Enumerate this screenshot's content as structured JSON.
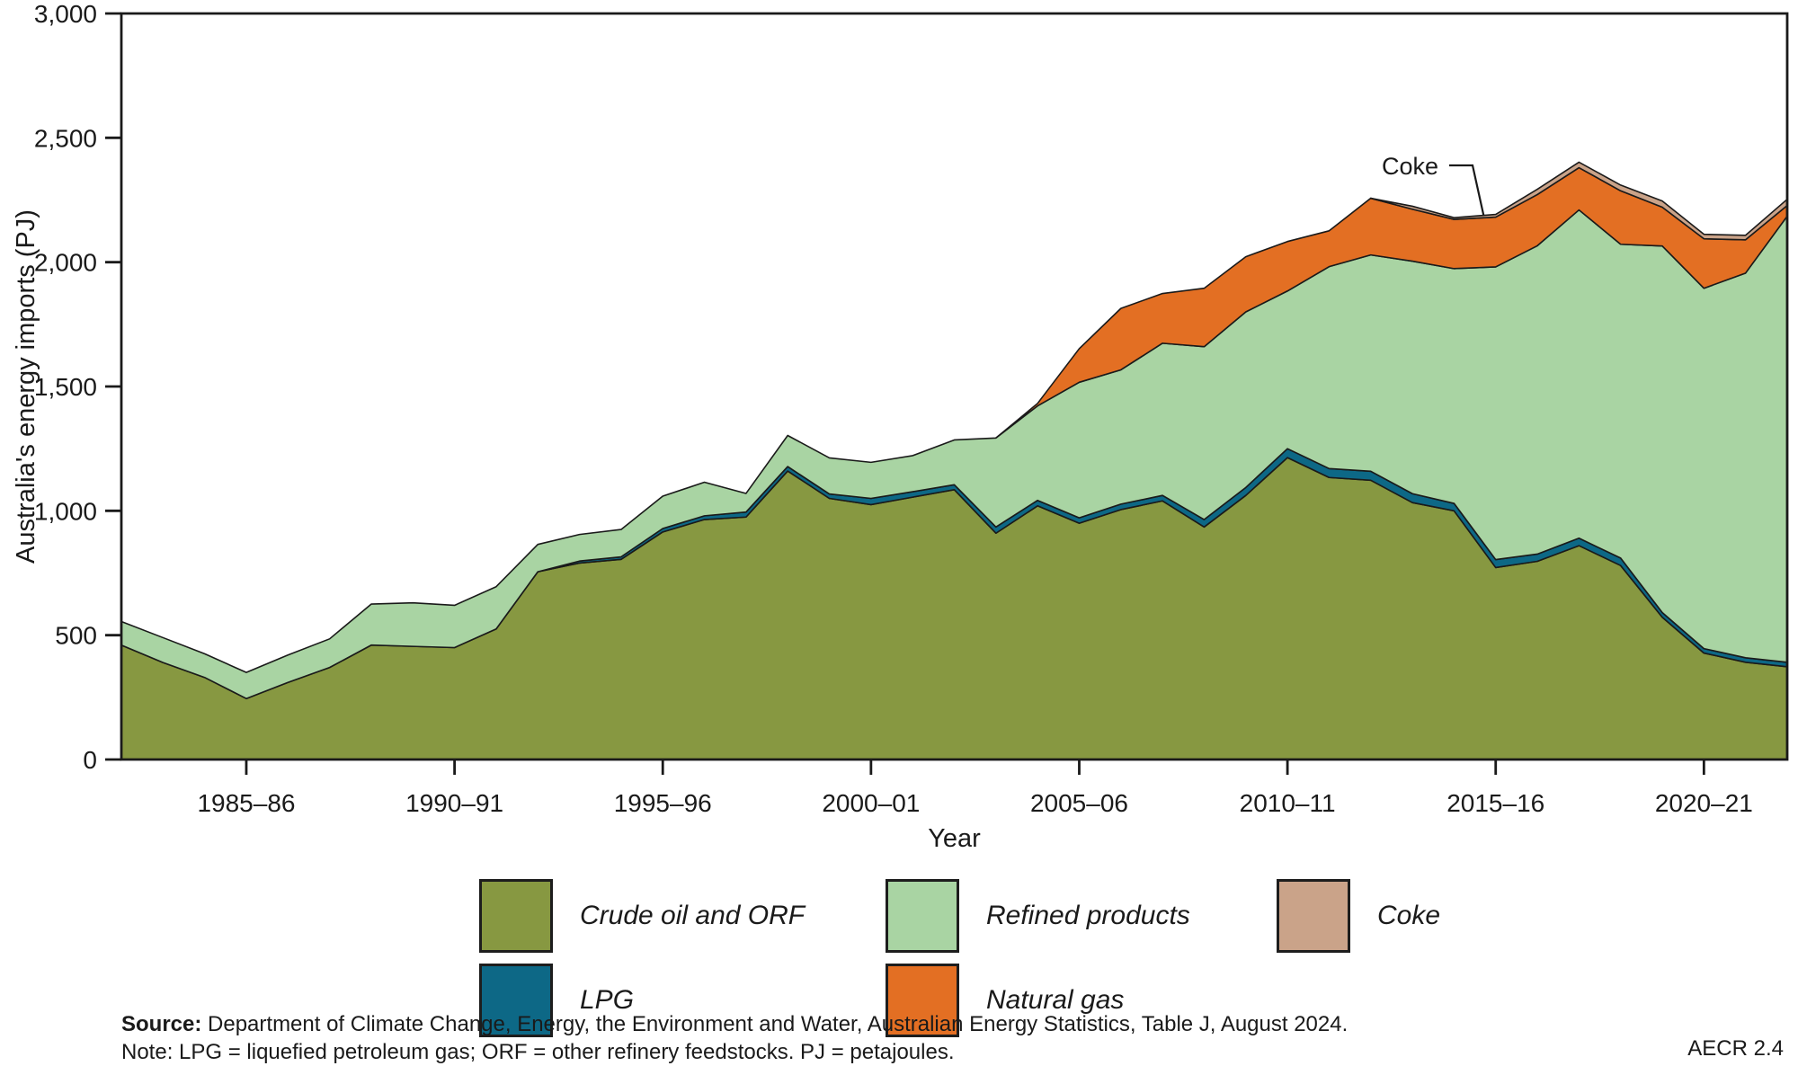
{
  "chart_data": {
    "type": "area",
    "stacked": true,
    "xlabel": "Year",
    "ylabel": "Australia's energy imports (PJ)",
    "ylim": [
      0,
      3000
    ],
    "yticks": [
      0,
      500,
      1000,
      1500,
      2000,
      2500,
      3000
    ],
    "ytick_labels": [
      "0",
      "500",
      "1,000",
      "1,500",
      "2,000",
      "2,500",
      "3,000"
    ],
    "grid": false,
    "legend_position": "bottom",
    "x_categories": [
      "1982–83",
      "1983–84",
      "1984–85",
      "1985–86",
      "1986–87",
      "1987–88",
      "1988–89",
      "1989–90",
      "1990–91",
      "1991–92",
      "1992–93",
      "1993–94",
      "1994–95",
      "1995–96",
      "1996–97",
      "1997–98",
      "1998–99",
      "1999–00",
      "2000–01",
      "2001–02",
      "2002–03",
      "2003–04",
      "2004–05",
      "2005–06",
      "2006–07",
      "2007–08",
      "2008–09",
      "2009–10",
      "2010–11",
      "2011–12",
      "2012–13",
      "2013–14",
      "2014–15",
      "2015–16",
      "2016–17",
      "2017–18",
      "2018–19",
      "2019–20",
      "2020–21",
      "2021–22",
      "2022–23"
    ],
    "xtick_indices": [
      3,
      8,
      13,
      18,
      23,
      28,
      33,
      38
    ],
    "xtick_labels": [
      "1985–86",
      "1990–91",
      "1995–96",
      "2000–01",
      "2005–06",
      "2010–11",
      "2015–16",
      "2020–21"
    ],
    "series": [
      {
        "name": "Crude oil and ORF",
        "color": "#879841",
        "values": [
          460,
          390,
          330,
          245,
          310,
          370,
          460,
          455,
          450,
          525,
          755,
          790,
          805,
          915,
          965,
          975,
          1160,
          1050,
          1025,
          1055,
          1085,
          910,
          1020,
          950,
          1005,
          1040,
          935,
          1062,
          1214,
          1134,
          1123,
          1033,
          1000,
          772,
          797,
          860,
          780,
          572,
          428,
          391,
          373
        ]
      },
      {
        "name": "LPG",
        "color": "#0d6886",
        "values": [
          0,
          0,
          0,
          0,
          0,
          0,
          0,
          0,
          0,
          0,
          0,
          8,
          10,
          14,
          15,
          20,
          18,
          18,
          25,
          22,
          20,
          25,
          22,
          22,
          22,
          22,
          30,
          32,
          36,
          36,
          36,
          36,
          30,
          32,
          29,
          30,
          30,
          19,
          18,
          18,
          18
        ]
      },
      {
        "name": "Refined products",
        "color": "#a9d4a3",
        "values": [
          95,
          100,
          95,
          105,
          110,
          115,
          165,
          175,
          170,
          170,
          110,
          107,
          110,
          130,
          135,
          75,
          125,
          145,
          145,
          145,
          180,
          358,
          380,
          545,
          540,
          612,
          695,
          706,
          634,
          812,
          870,
          935,
          944,
          1177,
          1240,
          1320,
          1262,
          1474,
          1449,
          1547,
          1794
        ]
      },
      {
        "name": "Natural gas",
        "color": "#e36f23",
        "values": [
          0,
          0,
          0,
          0,
          0,
          0,
          0,
          0,
          0,
          0,
          0,
          0,
          0,
          0,
          0,
          0,
          0,
          0,
          0,
          0,
          0,
          0,
          10,
          135,
          247,
          200,
          235,
          222,
          199,
          144,
          228,
          209,
          198,
          200,
          206,
          170,
          215,
          156,
          199,
          134,
          43
        ]
      },
      {
        "name": "Coke",
        "color": "#caa389",
        "values": [
          0,
          0,
          0,
          0,
          0,
          0,
          0,
          0,
          0,
          0,
          0,
          0,
          0,
          0,
          0,
          0,
          0,
          0,
          0,
          0,
          0,
          0,
          0,
          0,
          0,
          0,
          0,
          0,
          0,
          0,
          0,
          12,
          7,
          11,
          21,
          22,
          23,
          25,
          18,
          18,
          25
        ]
      }
    ],
    "annotation": {
      "label": "Coke",
      "target_year": "2014–15"
    }
  },
  "legend": {
    "items": [
      {
        "label": "Crude oil and ORF",
        "color": "#879841",
        "row": 0,
        "col": 0
      },
      {
        "label": "Refined products",
        "color": "#a9d4a3",
        "row": 0,
        "col": 1
      },
      {
        "label": "Coke",
        "color": "#caa389",
        "row": 0,
        "col": 2
      },
      {
        "label": "LPG",
        "color": "#0d6886",
        "row": 1,
        "col": 0
      },
      {
        "label": "Natural gas",
        "color": "#e36f23",
        "row": 1,
        "col": 1
      }
    ]
  },
  "footer": {
    "source_label": "Source:",
    "source_text": " Department of Climate Change, Energy, the Environment and Water, Australian Energy Statistics, Table J, August 2024.",
    "note_text": "Note: LPG = liquefied petroleum gas; ORF = other refinery feedstocks. PJ = petajoules.",
    "code": "AECR 2.4"
  }
}
